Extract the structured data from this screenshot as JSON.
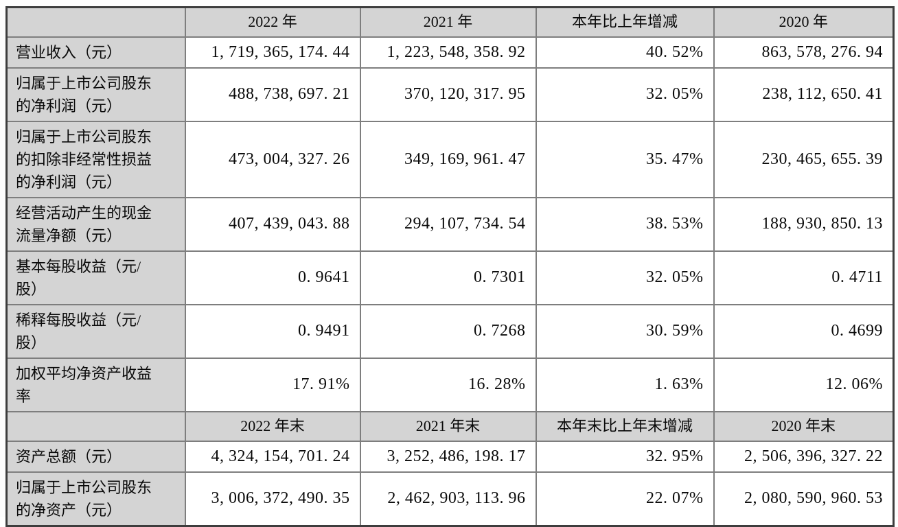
{
  "colors": {
    "header_bg": "#d4d4d4",
    "cell_bg": "#ffffff",
    "grid_line": "#7e7e7e",
    "outer_border": "#3d3d3d",
    "text": "#0a0a0a"
  },
  "table": {
    "sections": [
      {
        "headers": [
          "",
          "2022 年",
          "2021 年",
          "本年比上年增减",
          "2020 年"
        ],
        "rows": [
          {
            "label": "营业收入（元）",
            "values": [
              "1, 719, 365, 174. 44",
              "1, 223, 548, 358. 92",
              "40. 52%",
              "863, 578, 276. 94"
            ]
          },
          {
            "label": "归属于上市公司股东\n的净利润（元）",
            "values": [
              "488, 738, 697. 21",
              "370, 120, 317. 95",
              "32. 05%",
              "238, 112, 650. 41"
            ]
          },
          {
            "label": "归属于上市公司股东\n的扣除非经常性损益\n的净利润（元）",
            "values": [
              "473, 004, 327. 26",
              "349, 169, 961. 47",
              "35. 47%",
              "230, 465, 655. 39"
            ]
          },
          {
            "label": "经营活动产生的现金\n流量净额（元）",
            "values": [
              "407, 439, 043. 88",
              "294, 107, 734. 54",
              "38. 53%",
              "188, 930, 850. 13"
            ]
          },
          {
            "label": "基本每股收益（元/\n股）",
            "values": [
              "0. 9641",
              "0. 7301",
              "32. 05%",
              "0. 4711"
            ]
          },
          {
            "label": "稀释每股收益（元/\n股）",
            "values": [
              "0. 9491",
              "0. 7268",
              "30. 59%",
              "0. 4699"
            ]
          },
          {
            "label": "加权平均净资产收益\n率",
            "values": [
              "17. 91%",
              "16. 28%",
              "1. 63%",
              "12. 06%"
            ]
          }
        ]
      },
      {
        "headers": [
          "",
          "2022 年末",
          "2021 年末",
          "本年末比上年末增减",
          "2020 年末"
        ],
        "rows": [
          {
            "label": "资产总额（元）",
            "values": [
              "4, 324, 154, 701. 24",
              "3, 252, 486, 198. 17",
              "32. 95%",
              "2, 506, 396, 327. 22"
            ]
          },
          {
            "label": "归属于上市公司股东\n的净资产（元）",
            "values": [
              "3, 006, 372, 490. 35",
              "2, 462, 903, 113. 96",
              "22. 07%",
              "2, 080, 590, 960. 53"
            ]
          }
        ]
      }
    ]
  }
}
